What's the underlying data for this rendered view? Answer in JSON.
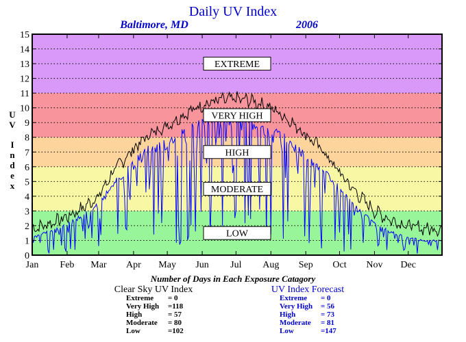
{
  "chart_data": {
    "type": "line",
    "title": "Daily UV Index",
    "subtitle_location": "Baltimore, MD",
    "subtitle_year": "2006",
    "ylabel": "UV Index",
    "ylim": [
      0,
      15
    ],
    "yticks": [
      "0",
      "1",
      "2",
      "3",
      "4",
      "5",
      "6",
      "7",
      "8",
      "9",
      "10",
      "11",
      "12",
      "13",
      "14",
      "15"
    ],
    "xlim": [
      1,
      365
    ],
    "months": [
      "Jan",
      "Feb",
      "Mar",
      "Apr",
      "May",
      "Jun",
      "Jul",
      "Aug",
      "Sep",
      "Oct",
      "Nov",
      "Dec"
    ],
    "bands": [
      {
        "name": "LOW",
        "from": 0,
        "to": 3,
        "color": "#99f599"
      },
      {
        "name": "MODERATE",
        "from": 3,
        "to": 6,
        "color": "#f8f8a4"
      },
      {
        "name": "HIGH",
        "from": 6,
        "to": 8,
        "color": "#fcd49c"
      },
      {
        "name": "VERY HIGH",
        "from": 8,
        "to": 11,
        "color": "#f8959c"
      },
      {
        "name": "EXTREME",
        "from": 11,
        "to": 15,
        "color": "#d899f8"
      }
    ],
    "grid": true,
    "series": [
      {
        "name": "Clear Sky UV Index",
        "color": "#000000",
        "days": [
          1,
          15,
          32,
          46,
          60,
          74,
          91,
          105,
          121,
          135,
          152,
          166,
          182,
          196,
          213,
          227,
          244,
          258,
          274,
          288,
          305,
          319,
          335,
          349,
          365
        ],
        "values": [
          1.8,
          2.1,
          2.6,
          3.2,
          4.0,
          5.8,
          7.2,
          8.2,
          8.8,
          9.5,
          10.2,
          10.5,
          10.6,
          10.5,
          10.0,
          9.3,
          8.2,
          7.2,
          5.6,
          4.3,
          3.0,
          2.4,
          2.0,
          1.8,
          1.8
        ]
      },
      {
        "name": "UV Index Forecast",
        "color": "#0000ff",
        "days": [
          1,
          15,
          32,
          46,
          60,
          74,
          91,
          105,
          121,
          135,
          152,
          166,
          182,
          196,
          213,
          227,
          244,
          258,
          274,
          288,
          305,
          319,
          335,
          349,
          365
        ],
        "values": [
          1.2,
          1.6,
          2.1,
          2.8,
          3.5,
          5.0,
          6.3,
          7.2,
          7.6,
          8.3,
          9.0,
          9.2,
          9.3,
          9.0,
          8.6,
          7.9,
          6.8,
          6.0,
          4.5,
          3.3,
          2.2,
          1.6,
          1.2,
          1.0,
          1.0
        ]
      }
    ]
  },
  "stats": {
    "caption": "Number of Days in Each Exposure Catagory",
    "clear_sky": {
      "heading": "Clear Sky UV Index",
      "rows": [
        {
          "label": "Extreme",
          "value": "=    0"
        },
        {
          "label": "Very High",
          "value": "=118"
        },
        {
          "label": "High",
          "value": "=  57"
        },
        {
          "label": "Moderate",
          "value": "=  80"
        },
        {
          "label": "Low",
          "value": "=102"
        }
      ]
    },
    "forecast": {
      "heading": "UV Index Forecast",
      "rows": [
        {
          "label": "Extreme",
          "value": "=    0"
        },
        {
          "label": "Very High",
          "value": "=  56"
        },
        {
          "label": "High",
          "value": "=  73"
        },
        {
          "label": "Moderate",
          "value": "=  81"
        },
        {
          "label": "Low",
          "value": "=147"
        }
      ]
    }
  }
}
